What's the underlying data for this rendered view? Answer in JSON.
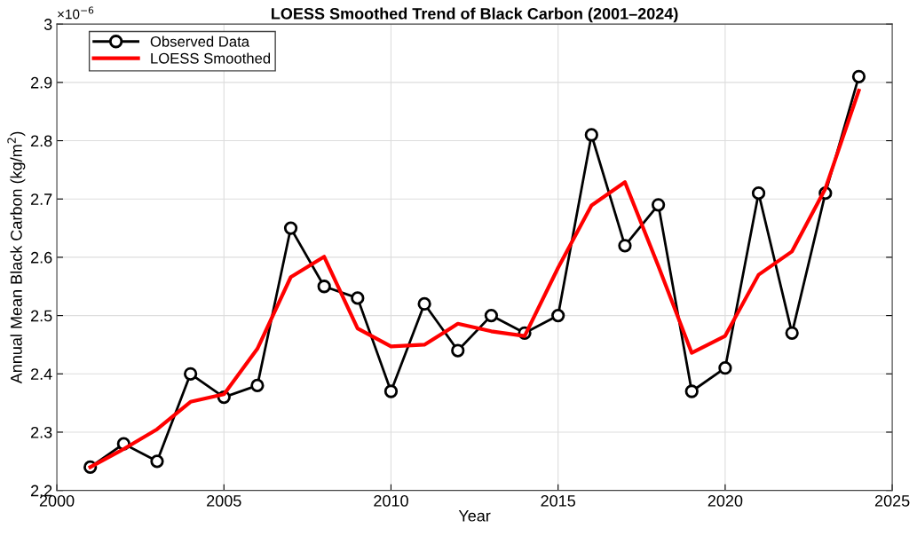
{
  "chart_data": {
    "type": "line",
    "title": "LOESS Smoothed Trend of Black Carbon (2001–2024)",
    "xlabel": "Year",
    "ylabel": "Annual Mean Black Carbon (kg/m$^{2}$)",
    "annotations": [
      "×10$^{−6}$"
    ],
    "x": [
      2001,
      2002,
      2003,
      2004,
      2005,
      2006,
      2007,
      2008,
      2009,
      2010,
      2011,
      2012,
      2013,
      2014,
      2015,
      2016,
      2017,
      2018,
      2019,
      2020,
      2021,
      2022,
      2023,
      2024
    ],
    "series": [
      {
        "name": "Observed Data",
        "color": "#000000",
        "marker": "circle",
        "values": [
          2.24,
          2.28,
          2.25,
          2.4,
          2.36,
          2.38,
          2.65,
          2.55,
          2.53,
          2.37,
          2.52,
          2.44,
          2.5,
          2.47,
          2.5,
          2.81,
          2.62,
          2.69,
          2.37,
          2.41,
          2.71,
          2.47,
          2.71,
          2.91
        ]
      },
      {
        "name": "LOESS Smoothed",
        "color": "#ff0000",
        "marker": "none",
        "values": [
          2.24,
          2.271,
          2.305,
          2.352,
          2.365,
          2.443,
          2.566,
          2.601,
          2.478,
          2.447,
          2.45,
          2.486,
          2.473,
          2.465,
          2.582,
          2.689,
          2.729,
          2.585,
          2.436,
          2.465,
          2.57,
          2.61,
          2.718,
          2.886
        ]
      }
    ],
    "xlim": [
      2000,
      2025
    ],
    "xticks": [
      2000,
      2005,
      2010,
      2015,
      2020,
      2025
    ],
    "ylim": [
      2.2,
      3
    ],
    "yticks": [
      2.2,
      2.3,
      2.4,
      2.5,
      2.6,
      2.7,
      2.8,
      2.9,
      3
    ],
    "grid": true,
    "legend": "top left"
  }
}
